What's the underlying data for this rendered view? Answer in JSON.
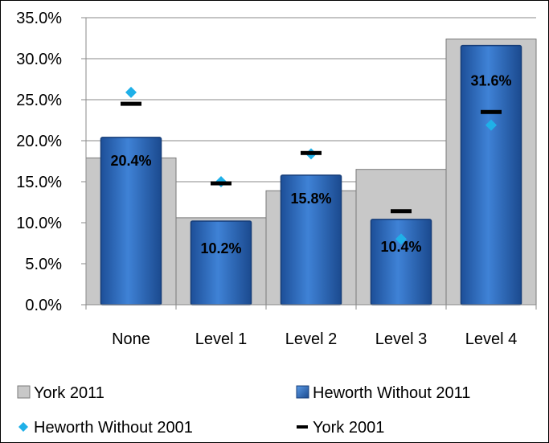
{
  "chart_data": {
    "type": "bar",
    "categories": [
      "None",
      "Level 1",
      "Level 2",
      "Level 3",
      "Level 4"
    ],
    "series": [
      {
        "name": "York 2011",
        "kind": "bar-background",
        "values": [
          17.9,
          10.6,
          13.9,
          16.5,
          32.4
        ],
        "color": "#c8c8c8"
      },
      {
        "name": "Heworth Without 2011",
        "kind": "bar",
        "values": [
          20.4,
          10.2,
          15.8,
          10.4,
          31.6
        ],
        "data_labels": [
          "20.4%",
          "10.2%",
          "15.8%",
          "10.4%",
          "31.6%"
        ],
        "color": "#2f6fbf"
      },
      {
        "name": "Heworth Without 2001",
        "kind": "marker-diamond",
        "values": [
          25.9,
          15.0,
          18.4,
          8.0,
          21.9
        ],
        "color": "#1fb0e8"
      },
      {
        "name": "York 2001",
        "kind": "marker-dash",
        "values": [
          24.5,
          14.8,
          18.5,
          11.4,
          23.5
        ],
        "color": "#000000"
      }
    ],
    "y_ticks": [
      "0.0%",
      "5.0%",
      "10.0%",
      "15.0%",
      "20.0%",
      "25.0%",
      "30.0%",
      "35.0%"
    ],
    "ylim": [
      0,
      35
    ],
    "grid": true,
    "legend_position": "bottom"
  }
}
